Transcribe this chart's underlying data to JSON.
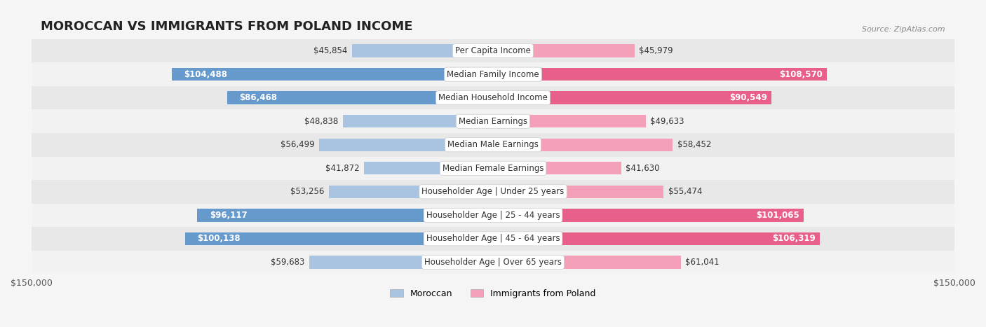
{
  "title": "MOROCCAN VS IMMIGRANTS FROM POLAND INCOME",
  "source": "Source: ZipAtlas.com",
  "categories": [
    "Per Capita Income",
    "Median Family Income",
    "Median Household Income",
    "Median Earnings",
    "Median Male Earnings",
    "Median Female Earnings",
    "Householder Age | Under 25 years",
    "Householder Age | 25 - 44 years",
    "Householder Age | 45 - 64 years",
    "Householder Age | Over 65 years"
  ],
  "moroccan_values": [
    45854,
    104488,
    86468,
    48838,
    56499,
    41872,
    53256,
    96117,
    100138,
    59683
  ],
  "poland_values": [
    45979,
    108570,
    90549,
    49633,
    58452,
    41630,
    55474,
    101065,
    106319,
    61041
  ],
  "moroccan_labels": [
    "$45,854",
    "$104,488",
    "$86,468",
    "$48,838",
    "$56,499",
    "$41,872",
    "$53,256",
    "$96,117",
    "$100,138",
    "$59,683"
  ],
  "poland_labels": [
    "$45,979",
    "$108,570",
    "$90,549",
    "$49,633",
    "$58,452",
    "$41,630",
    "$55,474",
    "$101,065",
    "$106,319",
    "$61,041"
  ],
  "moroccan_color_light": "#a8c4e0",
  "moroccan_color_dark": "#6699cc",
  "poland_color_light": "#f4a0b8",
  "poland_color_dark": "#e8608a",
  "max_value": 150000,
  "bar_height": 0.55,
  "background_color": "#f5f5f5",
  "row_bg_color": "#ffffff",
  "row_alt_color": "#f0f0f0",
  "label_threshold": 80000,
  "title_fontsize": 13,
  "label_fontsize": 8.5,
  "tick_fontsize": 9,
  "legend_fontsize": 9,
  "category_fontsize": 8.5
}
